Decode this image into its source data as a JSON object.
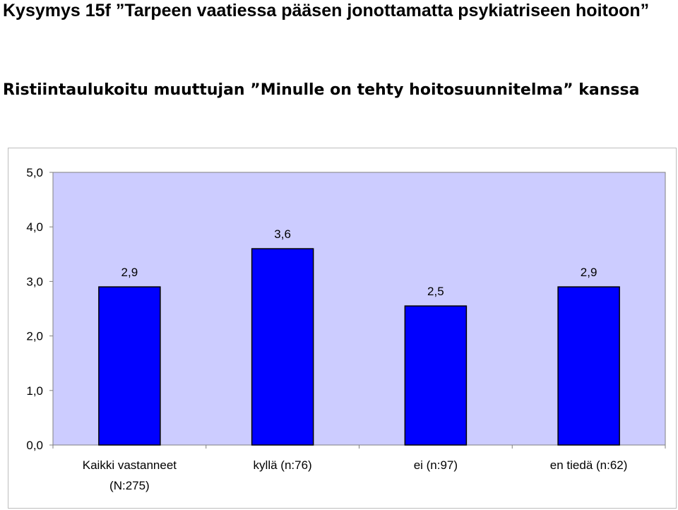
{
  "title": "Kysymys 15f ”Tarpeen vaatiessa pääsen jonottamatta psykiatriseen hoitoon”",
  "subtitle": "Ristiintaulukoitu muuttujan ”Minulle on tehty hoitosuunnitelma” kanssa",
  "colors": {
    "bar": "#0000ff",
    "plot_bg": "#ccccff"
  },
  "chart_data": {
    "type": "bar",
    "categories": [
      [
        "Kaikki vastanneet",
        "(N:275)"
      ],
      [
        "kyllä (n:76)"
      ],
      [
        "ei (n:97)"
      ],
      [
        "en tiedä (n:62)"
      ]
    ],
    "values": [
      2.9,
      3.6,
      2.55,
      2.9
    ],
    "data_labels": [
      "2,9",
      "3,6",
      "2,5",
      "2,9"
    ],
    "ylim": [
      0,
      5
    ],
    "yticks": [
      0,
      1,
      2,
      3,
      4,
      5
    ],
    "ytick_labels": [
      "0,0",
      "1,0",
      "2,0",
      "3,0",
      "4,0",
      "5,0"
    ],
    "grid": false,
    "legend": false
  }
}
